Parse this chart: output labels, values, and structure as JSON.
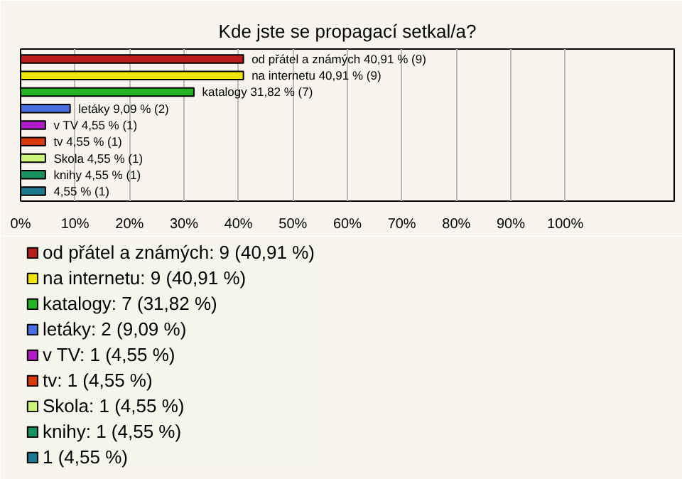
{
  "chart_data": {
    "type": "bar",
    "orientation": "horizontal",
    "title": "Kde jste se propagací setkal/a?",
    "categories": [
      null,
      null,
      null,
      null,
      null,
      null,
      null,
      null,
      null
    ],
    "series": [
      {
        "name": "od přátel a známých: 9 (40,91 %)",
        "color": "#b81c1c",
        "values": [
          40.91,
          null,
          null,
          null,
          null,
          null,
          null,
          null,
          null
        ],
        "value_labels": [
          "od přátel a známých 40,91 % (9)",
          null,
          null,
          null,
          null,
          null,
          null,
          null,
          null
        ]
      },
      {
        "name": "na internetu: 9 (40,91 %)",
        "color": "#f2e600",
        "values": [
          null,
          40.91,
          null,
          null,
          null,
          null,
          null,
          null,
          null
        ],
        "value_labels": [
          null,
          "na internetu 40,91 % (9)",
          null,
          null,
          null,
          null,
          null,
          null,
          null
        ]
      },
      {
        "name": "katalogy: 7 (31,82 %)",
        "color": "#22b422",
        "values": [
          null,
          null,
          31.82,
          null,
          null,
          null,
          null,
          null,
          null
        ],
        "value_labels": [
          null,
          null,
          "katalogy 31,82 % (7)",
          null,
          null,
          null,
          null,
          null,
          null
        ]
      },
      {
        "name": "letáky: 2 (9,09 %)",
        "color": "#4a6ee0",
        "values": [
          null,
          null,
          null,
          9.09,
          null,
          null,
          null,
          null,
          null
        ],
        "value_labels": [
          null,
          null,
          null,
          "letáky 9,09 % (2)",
          null,
          null,
          null,
          null,
          null
        ]
      },
      {
        "name": "v TV: 1 (4,55 %)",
        "color": "#b21cc8",
        "values": [
          null,
          null,
          null,
          null,
          4.55,
          null,
          null,
          null,
          null
        ],
        "value_labels": [
          null,
          null,
          null,
          null,
          "v TV 4,55 % (1)",
          null,
          null,
          null,
          null
        ]
      },
      {
        "name": "tv: 1 (4,55 %)",
        "color": "#d83a0a",
        "values": [
          null,
          null,
          null,
          null,
          null,
          4.55,
          null,
          null,
          null
        ],
        "value_labels": [
          null,
          null,
          null,
          null,
          null,
          "tv 4,55 % (1)",
          null,
          null,
          null
        ]
      },
      {
        "name": "Skola: 1 (4,55 %)",
        "color": "#ccf57a",
        "values": [
          null,
          null,
          null,
          null,
          null,
          null,
          4.55,
          null,
          null
        ],
        "value_labels": [
          null,
          null,
          null,
          null,
          null,
          null,
          "Skola 4,55 % (1)",
          null,
          null
        ]
      },
      {
        "name": "knihy: 1 (4,55 %)",
        "color": "#16925a",
        "values": [
          null,
          null,
          null,
          null,
          null,
          null,
          null,
          4.55,
          null
        ],
        "value_labels": [
          null,
          null,
          null,
          null,
          null,
          null,
          null,
          "knihy 4,55 % (1)",
          null
        ]
      },
      {
        "name": "1 (4,55 %)",
        "color": "#1e7890",
        "values": [
          null,
          null,
          null,
          null,
          null,
          null,
          null,
          null,
          4.55
        ],
        "value_labels": [
          null,
          null,
          null,
          null,
          null,
          null,
          null,
          null,
          "4,55 % (1)"
        ]
      }
    ],
    "xlim": [
      0,
      120
    ],
    "xticks": [
      {
        "value": 0,
        "label": "0%"
      },
      {
        "value": 10,
        "label": "10%"
      },
      {
        "value": 20,
        "label": "20%"
      },
      {
        "value": 30,
        "label": "30%"
      },
      {
        "value": 40,
        "label": "40%"
      },
      {
        "value": 50,
        "label": "50%"
      },
      {
        "value": 60,
        "label": "60%"
      },
      {
        "value": 70,
        "label": "70%"
      },
      {
        "value": 80,
        "label": "80%"
      },
      {
        "value": 90,
        "label": "90%"
      },
      {
        "value": 100,
        "label": "100%"
      }
    ],
    "grid": "x",
    "legend": "bottom"
  }
}
